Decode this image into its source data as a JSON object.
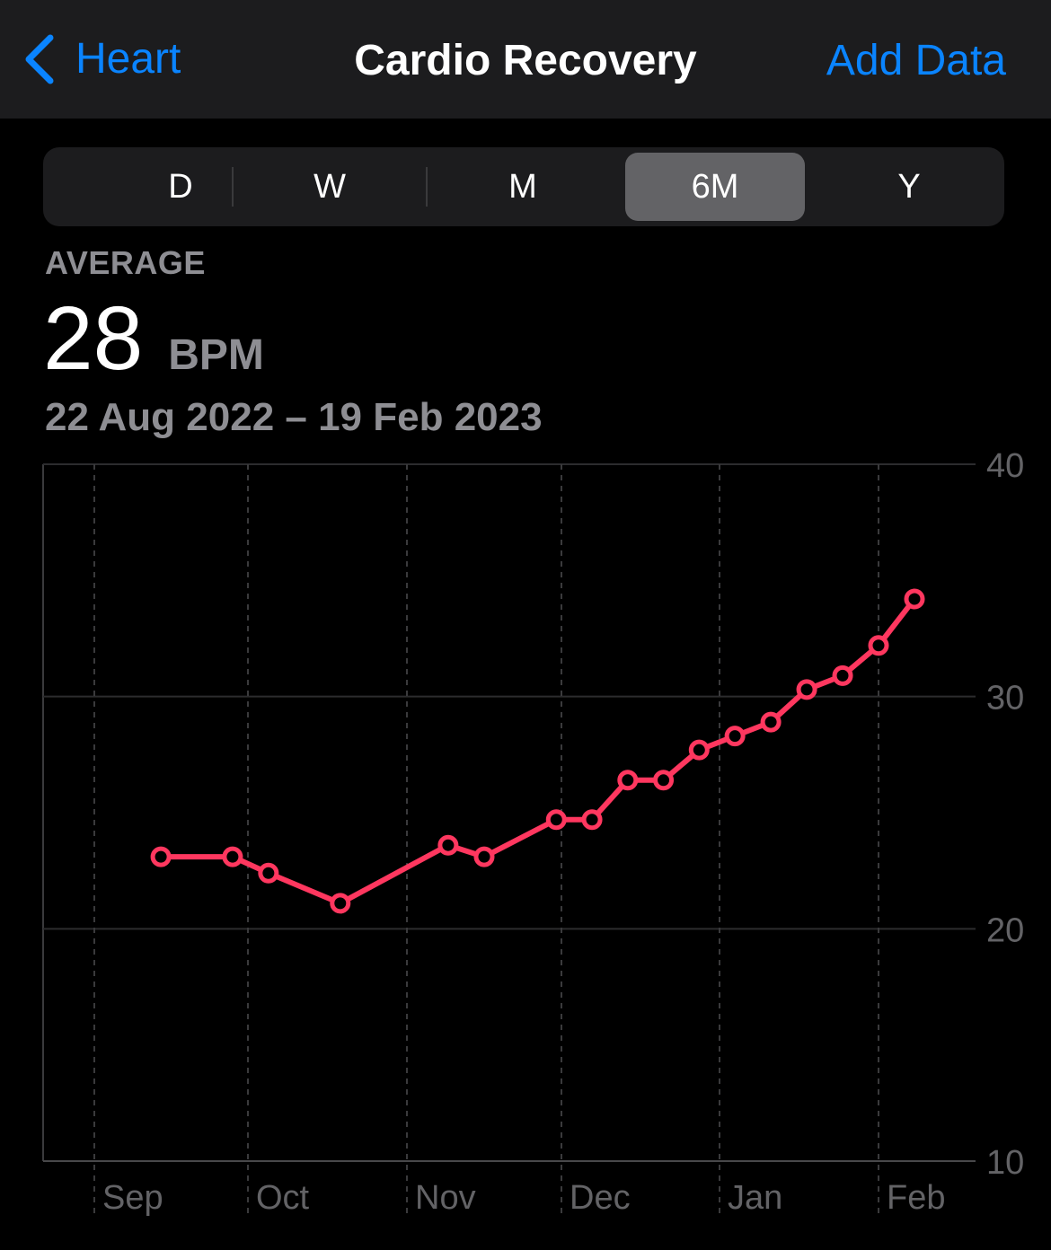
{
  "nav": {
    "back_label": "Heart",
    "title": "Cardio Recovery",
    "action_label": "Add Data"
  },
  "segments": [
    {
      "label": "D",
      "selected": false
    },
    {
      "label": "W",
      "selected": false
    },
    {
      "label": "M",
      "selected": false
    },
    {
      "label": "6M",
      "selected": true
    },
    {
      "label": "Y",
      "selected": false
    }
  ],
  "summary": {
    "label": "AVERAGE",
    "value": "28",
    "unit": "BPM",
    "date_range": "22 Aug 2022 – 19 Feb 2023"
  },
  "colors": {
    "accent": "#0a84ff",
    "line": "#ff375f",
    "background": "#000000",
    "navbar": "#1c1c1e"
  },
  "chart_data": {
    "type": "line",
    "xlabel": "",
    "ylabel": "",
    "x_ticks": [
      "Sep",
      "Oct",
      "Nov",
      "Dec",
      "Jan",
      "Feb"
    ],
    "y_ticks": [
      40,
      30,
      20,
      10
    ],
    "ylim": [
      10,
      40
    ],
    "grid": true,
    "series": [
      {
        "x": [
          "2022-09-14",
          "2022-09-28",
          "2022-10-05",
          "2022-10-19",
          "2022-11-09",
          "2022-11-16",
          "2022-11-30",
          "2022-12-07",
          "2022-12-14",
          "2022-12-21",
          "2022-12-28",
          "2023-01-04",
          "2023-01-11",
          "2023-01-18",
          "2023-01-25",
          "2023-02-01",
          "2023-02-08"
        ],
        "values": [
          23.1,
          23.1,
          22.4,
          21.1,
          23.6,
          23.1,
          24.7,
          24.7,
          26.4,
          26.4,
          27.7,
          28.3,
          28.9,
          30.3,
          30.9,
          32.2,
          34.2
        ]
      }
    ]
  }
}
